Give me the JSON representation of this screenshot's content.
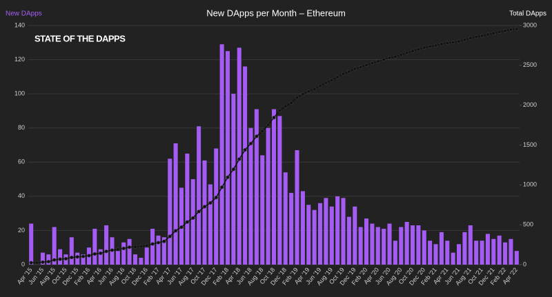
{
  "chart_data": {
    "type": "bar_line",
    "title": "New DApps per Month – Ethereum",
    "logo": "STATE OF THE DAPPS",
    "y_label": "New DApps",
    "y2_label": "Total DApps",
    "categories": [
      "Apr '15",
      null,
      "Jun '15",
      null,
      "Aug '15",
      null,
      "Oct '15",
      null,
      "Dec '15",
      null,
      "Feb '16",
      null,
      "Apr '16",
      null,
      "Jun '16",
      null,
      "Aug '16",
      null,
      "Oct '16",
      null,
      "Dec '16",
      null,
      "Feb '17",
      null,
      "Apr '17",
      null,
      "Jun '17",
      null,
      "Aug '17",
      null,
      "Oct '17",
      null,
      "Dec '17",
      null,
      "Feb '18",
      null,
      "Apr '18",
      null,
      "Jun '18",
      null,
      "Aug '18",
      null,
      "Oct '18",
      null,
      "Dec '18",
      null,
      "Feb '19",
      null,
      "Apr '19",
      null,
      "Jun '19",
      null,
      "Aug '19",
      null,
      "Oct '19",
      null,
      "Dec '19",
      null,
      "Feb '20",
      null,
      "Apr '20",
      null,
      "Jun '20",
      null,
      "Aug '20",
      null,
      "Oct '20",
      null,
      "Dec '20",
      null,
      "Feb '21",
      null,
      "Apr '21",
      null,
      "Jun '21",
      null,
      "Aug '21",
      null,
      "Oct '21",
      null,
      "Dec '21",
      null,
      "Feb '22",
      null,
      "Apr '22"
    ],
    "series": [
      {
        "name": "New DApps",
        "color": "#a55cf5",
        "kind": "bar",
        "values": [
          24,
          0,
          7,
          6,
          22,
          9,
          6,
          16,
          7,
          6,
          10,
          21,
          9,
          23,
          16,
          8,
          13,
          15,
          6,
          4,
          10,
          21,
          17,
          16,
          62,
          71,
          45,
          65,
          50,
          81,
          61,
          47,
          68,
          129,
          125,
          100,
          127,
          116,
          80,
          91,
          64,
          80,
          91,
          87,
          54,
          42,
          67,
          43,
          35,
          32,
          36,
          39,
          34,
          40,
          39,
          28,
          34,
          22,
          27,
          24,
          22,
          21,
          24,
          14,
          22,
          25,
          23,
          23,
          20,
          14,
          12,
          19,
          14,
          7,
          12,
          19,
          23,
          14,
          14,
          18,
          15,
          17,
          13,
          15,
          8
        ]
      },
      {
        "name": "Total DApps",
        "color": "#111111",
        "kind": "line",
        "axis": "y2",
        "values": [
          24,
          24,
          31,
          37,
          59,
          68,
          74,
          90,
          97,
          103,
          113,
          134,
          143,
          166,
          182,
          190,
          203,
          218,
          224,
          228,
          238,
          259,
          276,
          292,
          354,
          425,
          470,
          535,
          585,
          666,
          727,
          774,
          842,
          971,
          1096,
          1196,
          1323,
          1439,
          1519,
          1610,
          1674,
          1754,
          1845,
          1932,
          1986,
          2028,
          2095,
          2138,
          2173,
          2205,
          2241,
          2280,
          2314,
          2354,
          2393,
          2421,
          2455,
          2477,
          2504,
          2528,
          2550,
          2571,
          2595,
          2609,
          2631,
          2656,
          2679,
          2702,
          2722,
          2736,
          2748,
          2767,
          2781,
          2788,
          2800,
          2819,
          2842,
          2856,
          2870,
          2888,
          2903,
          2920,
          2933,
          2948,
          2956
        ]
      }
    ],
    "ylim": [
      0,
      140
    ],
    "yticks": [
      0,
      20,
      40,
      60,
      80,
      100,
      120,
      140
    ],
    "y2lim": [
      0,
      3000
    ],
    "y2ticks": [
      0,
      500,
      1000,
      1500,
      2000,
      2500,
      3000
    ],
    "grid": true
  }
}
